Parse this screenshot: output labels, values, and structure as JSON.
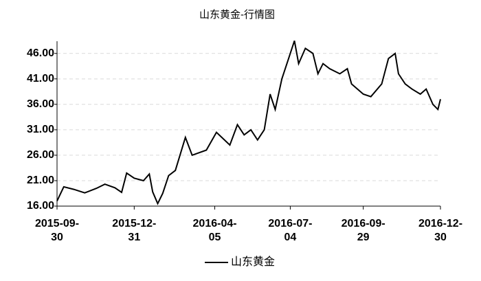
{
  "chart_data": {
    "type": "line",
    "title": "山东黄金-行情图",
    "x": [
      "2015-09-30",
      "2015-10-08",
      "2015-10-20",
      "2015-11-02",
      "2015-11-16",
      "2015-11-26",
      "2015-12-08",
      "2015-12-16",
      "2015-12-22",
      "2015-12-31",
      "2016-01-11",
      "2016-01-18",
      "2016-01-22",
      "2016-01-28",
      "2016-02-03",
      "2016-02-10",
      "2016-02-18",
      "2016-03-01",
      "2016-03-09",
      "2016-03-26",
      "2016-04-07",
      "2016-04-23",
      "2016-05-02",
      "2016-05-10",
      "2016-05-18",
      "2016-05-26",
      "2016-06-03",
      "2016-06-10",
      "2016-06-16",
      "2016-06-24",
      "2016-07-02",
      "2016-07-09",
      "2016-07-14",
      "2016-07-22",
      "2016-07-31",
      "2016-08-06",
      "2016-08-12",
      "2016-08-20",
      "2016-09-01",
      "2016-09-10",
      "2016-09-15",
      "2016-09-29",
      "2016-10-08",
      "2016-10-21",
      "2016-10-29",
      "2016-11-06",
      "2016-11-10",
      "2016-11-18",
      "2016-11-26",
      "2016-12-06",
      "2016-12-13",
      "2016-12-21",
      "2016-12-27",
      "2016-12-30"
    ],
    "series": [
      {
        "name": "山东黄金",
        "color": "#000000",
        "values": [
          17.0,
          19.8,
          19.3,
          18.6,
          19.5,
          20.3,
          19.6,
          18.7,
          22.5,
          21.5,
          21.0,
          22.3,
          18.8,
          16.5,
          18.5,
          22.0,
          23.0,
          29.5,
          26.0,
          27.0,
          30.5,
          28.0,
          32.0,
          30.0,
          31.0,
          29.0,
          31.0,
          38.0,
          35.0,
          41.0,
          45.0,
          48.5,
          44.0,
          47.0,
          46.0,
          42.0,
          44.0,
          43.0,
          42.0,
          43.0,
          40.0,
          38.0,
          37.5,
          40.0,
          45.0,
          46.0,
          42.0,
          40.0,
          39.0,
          38.0,
          39.0,
          36.0,
          35.0,
          37.0
        ]
      }
    ],
    "xlim": [
      "2015-09-30",
      "2016-12-30"
    ],
    "xticks": [
      "2015-09-30",
      "2015-12-31",
      "2016-04-05",
      "2016-07-04",
      "2016-09-29",
      "2016-12-30"
    ],
    "ylim": [
      16,
      48.4
    ],
    "yticks": [
      {
        "value": 16,
        "label": "16.00"
      },
      {
        "value": 21,
        "label": "21.00"
      },
      {
        "value": 26,
        "label": "26.00"
      },
      {
        "value": 31,
        "label": "31.00"
      },
      {
        "value": 36,
        "label": "36.00"
      },
      {
        "value": 41,
        "label": "41.00"
      },
      {
        "value": 46,
        "label": "46.00"
      }
    ],
    "grid": true
  }
}
